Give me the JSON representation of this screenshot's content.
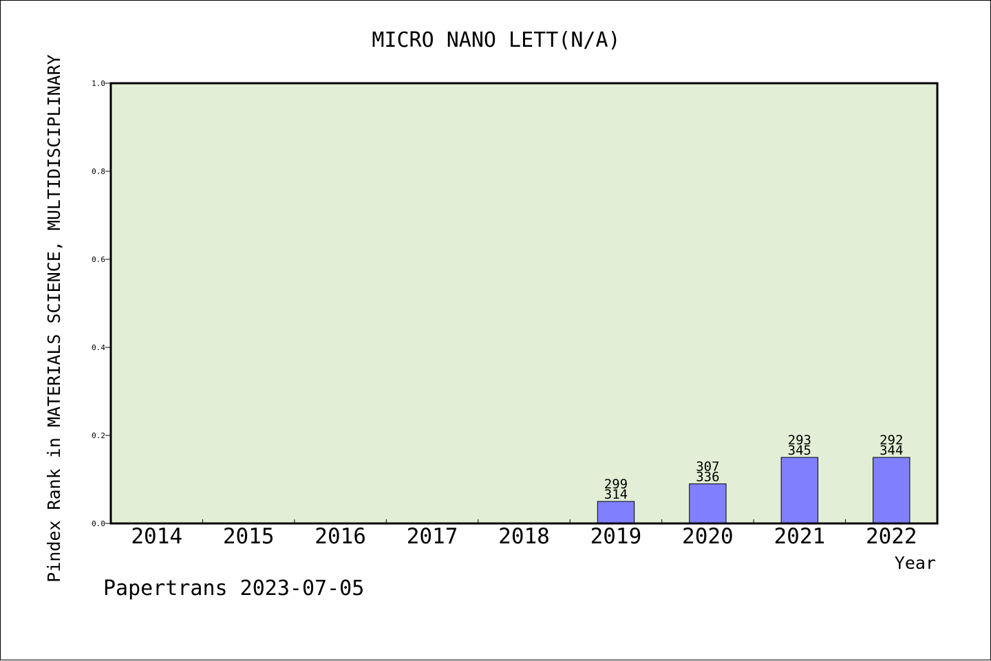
{
  "chart_data": {
    "type": "bar",
    "title": "MICRO NANO LETT(N/A)",
    "xlabel": "Year",
    "ylabel": "Pindex Rank in MATERIALS SCIENCE, MULTIDISCIPLINARY",
    "ylim": [
      0,
      1.0
    ],
    "yticks": [
      "0.0",
      "0.2",
      "0.4",
      "0.6",
      "0.8",
      "1.0"
    ],
    "categories": [
      "2014",
      "2015",
      "2016",
      "2017",
      "2018",
      "2019",
      "2020",
      "2021",
      "2022"
    ],
    "values": [
      null,
      null,
      null,
      null,
      null,
      0.05,
      0.09,
      0.15,
      0.15
    ],
    "bar_labels": [
      null,
      null,
      null,
      null,
      null,
      {
        "rank": "299",
        "total": "314"
      },
      {
        "rank": "307",
        "total": "336"
      },
      {
        "rank": "293",
        "total": "345"
      },
      {
        "rank": "292",
        "total": "344"
      }
    ],
    "grid": false,
    "colors": {
      "plot_background": "#e2efd6",
      "bar_fill": "#8080ff",
      "bar_stroke": "#000000",
      "axis": "#000000"
    }
  },
  "footer": {
    "text": "Papertrans 2023-07-05"
  }
}
